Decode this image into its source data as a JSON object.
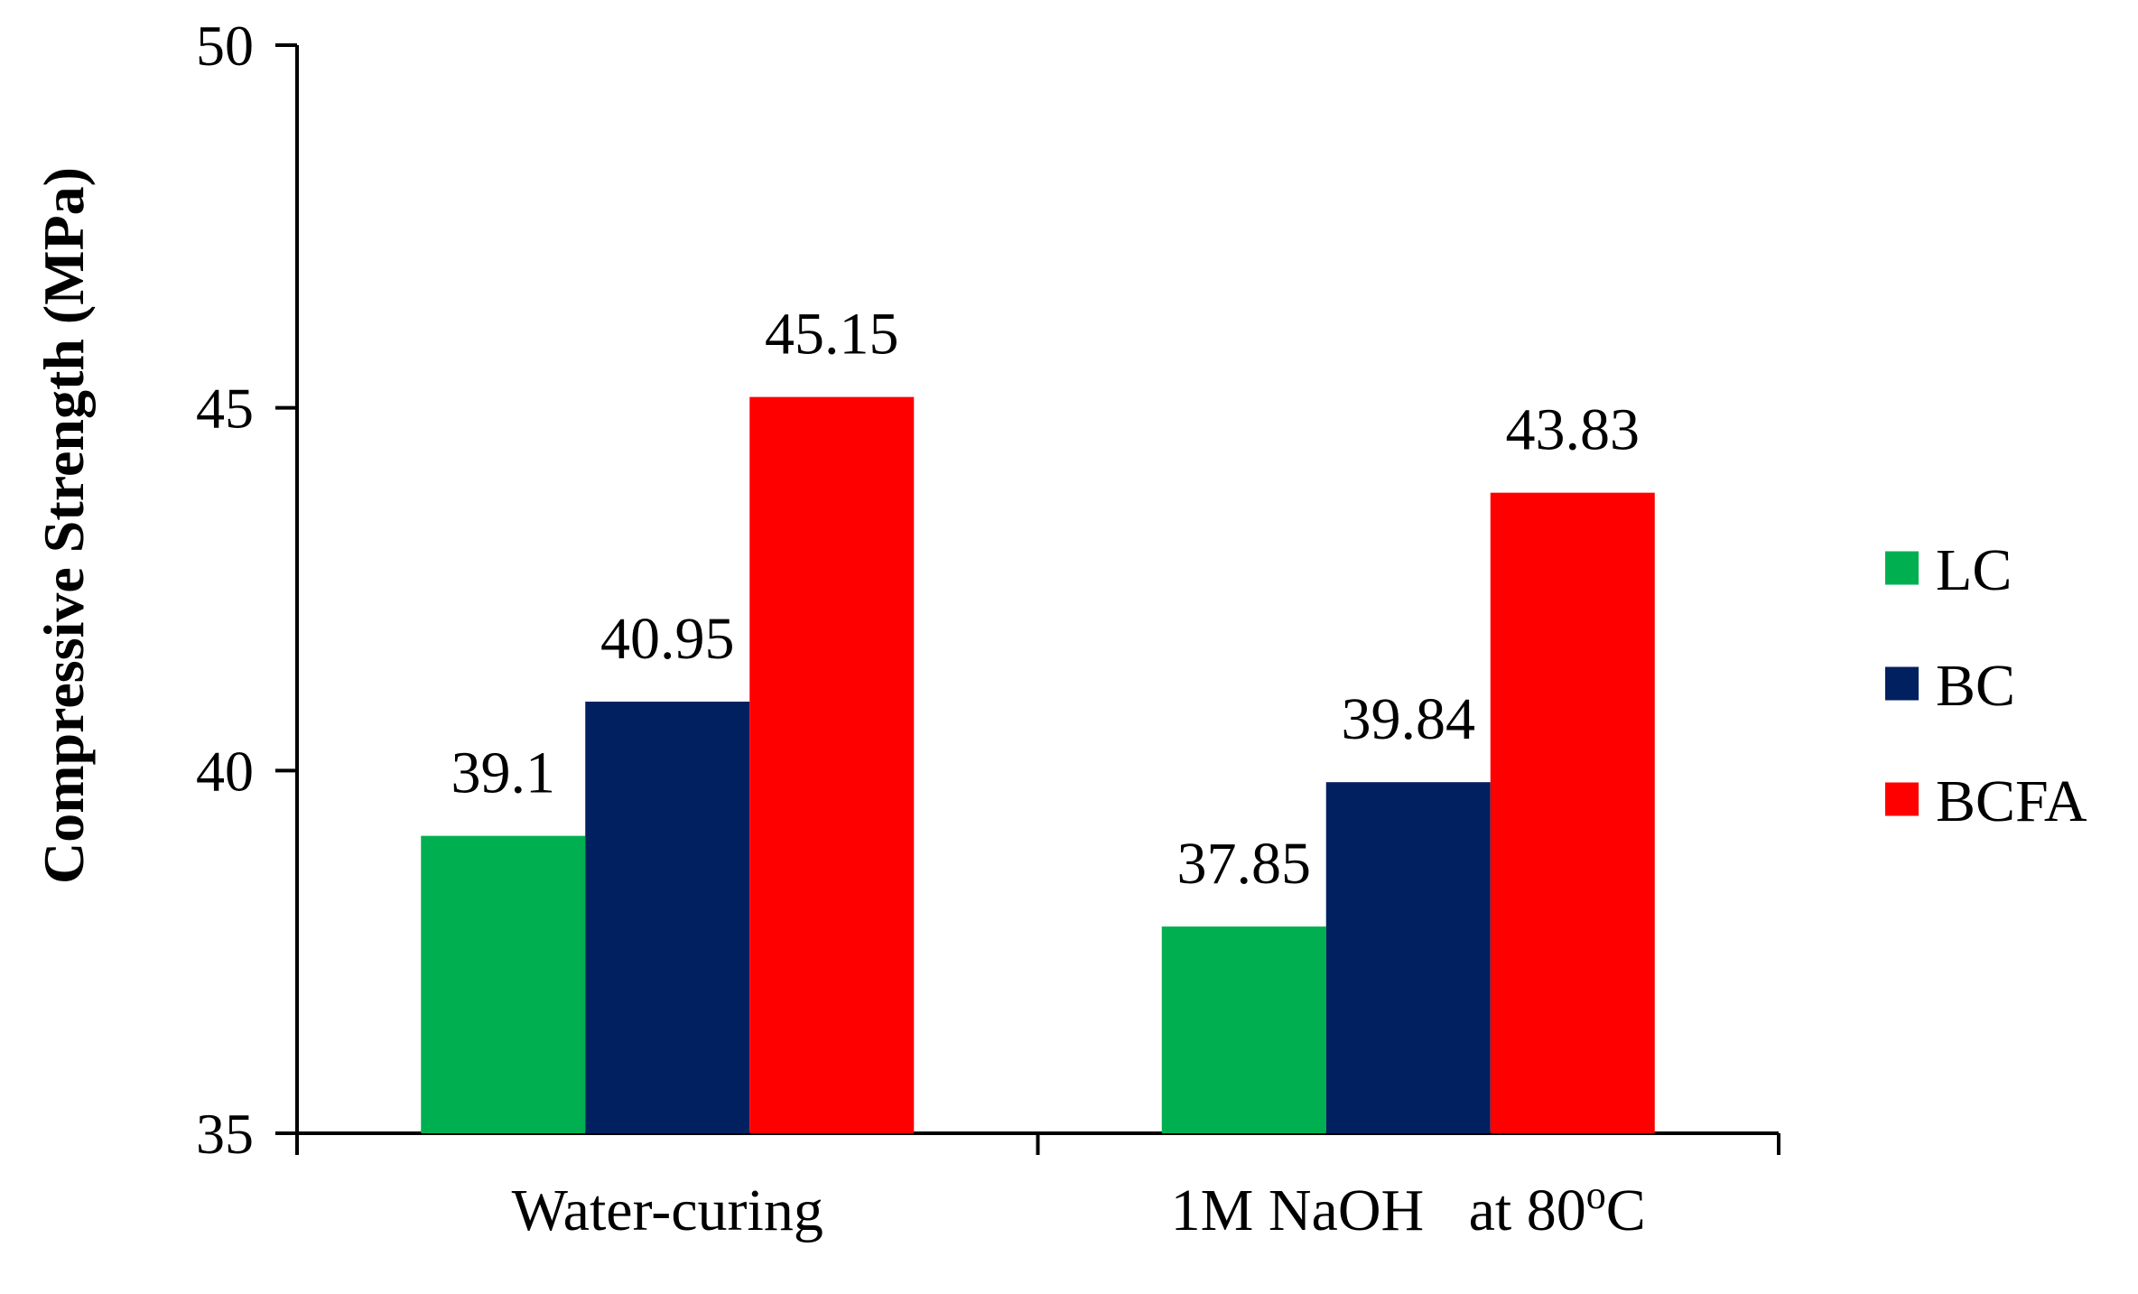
{
  "chart_data": {
    "type": "bar",
    "title": "",
    "xlabel": "",
    "ylabel": "Compressive Strength (MPa)",
    "ylim": [
      35,
      50
    ],
    "yticks": [
      35,
      40,
      45,
      50
    ],
    "categories": [
      "Water-curing",
      "1M NaOH   at 80"
    ],
    "category_suffix": {
      "index": 1,
      "sup": "o",
      "text": "C"
    },
    "series": [
      {
        "name": "LC",
        "color": "#00b050",
        "values": [
          39.1,
          37.85
        ]
      },
      {
        "name": "BC",
        "color": "#002060",
        "values": [
          40.95,
          39.84
        ]
      },
      {
        "name": "BCFA",
        "color": "#ff0000",
        "values": [
          45.15,
          43.83
        ]
      }
    ],
    "data_labels": [
      [
        "39.1",
        "37.85"
      ],
      [
        "40.95",
        "39.84"
      ],
      [
        "45.15",
        "43.83"
      ]
    ],
    "legend_position": "right",
    "grid": false
  }
}
